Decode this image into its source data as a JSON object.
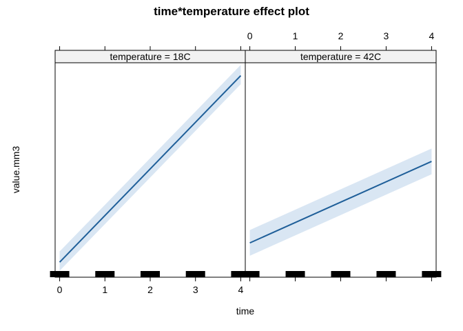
{
  "chart_data": {
    "type": "line",
    "title": "time*temperature effect plot",
    "xlabel": "time",
    "ylabel": "value.mm3",
    "xlim": [
      -0.1,
      4.1
    ],
    "xticks": [
      "0",
      "1",
      "2",
      "3",
      "4"
    ],
    "y_tick_labels_shown": false,
    "grid": false,
    "legend": "none",
    "rug": true,
    "colors": {
      "line": "#1f5f99",
      "band": "#d9e6f3",
      "strip": "#f2f2f2",
      "rug": "#000000"
    },
    "panels": [
      {
        "strip": "temperature = 18C",
        "x": [
          0,
          4
        ],
        "fit": [
          0.07,
          0.94
        ],
        "lower": [
          0.03,
          0.9
        ],
        "upper": [
          0.12,
          0.99
        ],
        "rug_x": [
          0,
          1,
          2,
          3,
          4
        ]
      },
      {
        "strip": "temperature = 42C",
        "x": [
          0,
          4
        ],
        "fit": [
          0.16,
          0.54
        ],
        "lower": [
          0.1,
          0.48
        ],
        "upper": [
          0.22,
          0.6
        ],
        "rug_x": [
          0,
          1,
          2,
          3,
          4
        ]
      }
    ]
  }
}
